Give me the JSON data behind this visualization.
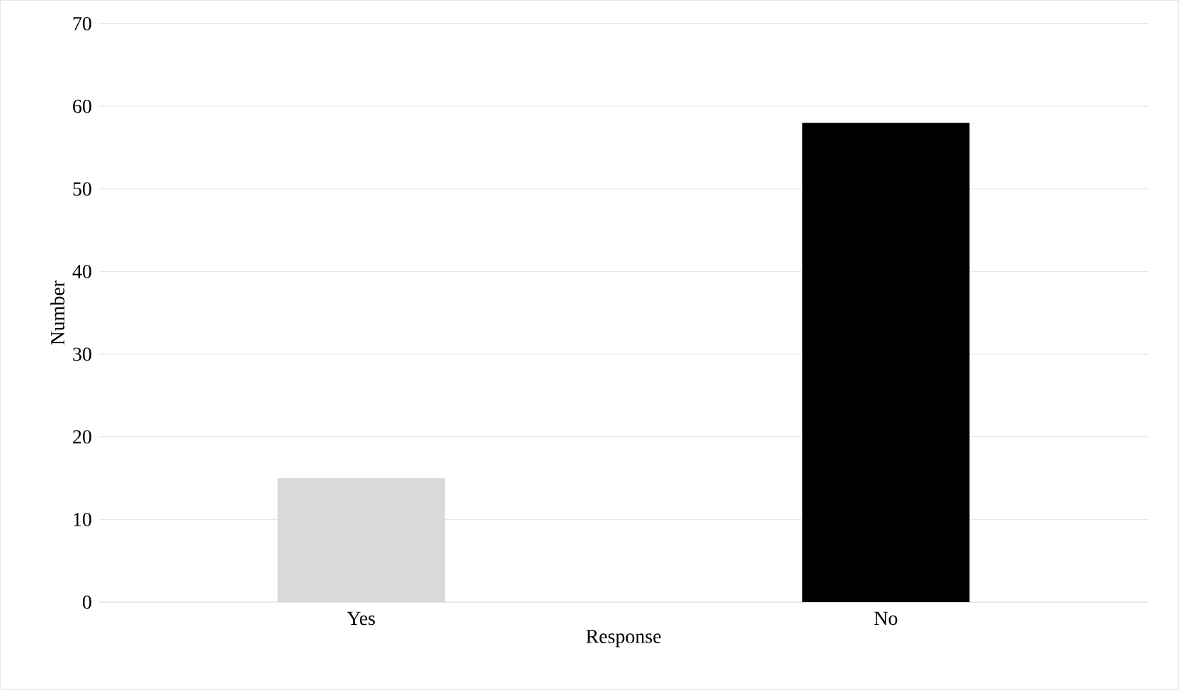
{
  "chart_data": {
    "type": "bar",
    "xlabel": "Response",
    "ylabel": "Number",
    "categories": [
      "Yes",
      "No"
    ],
    "values": [
      15,
      58
    ],
    "colors": [
      "#d9d9d9",
      "#000000"
    ],
    "ylim": [
      0,
      70
    ],
    "yticks": [
      0,
      10,
      20,
      30,
      40,
      50,
      60,
      70
    ],
    "grid": "y"
  }
}
